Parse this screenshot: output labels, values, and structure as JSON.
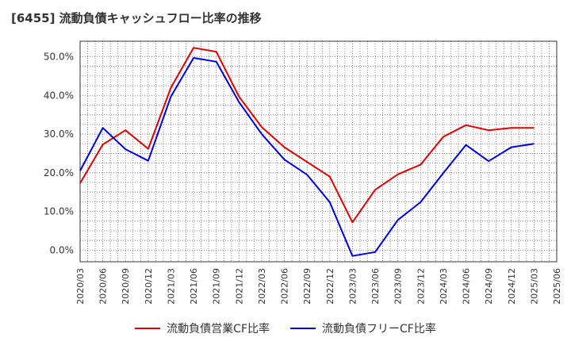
{
  "title": "[6455]  流動負債キャッシュフロー比率の推移",
  "chart_data": {
    "type": "line",
    "title": "[6455]  流動負債キャッシュフロー比率の推移",
    "xlabel": "",
    "ylabel": "",
    "x": [
      "2020/03",
      "2020/06",
      "2020/09",
      "2020/12",
      "2021/03",
      "2021/06",
      "2021/09",
      "2021/12",
      "2022/03",
      "2022/06",
      "2022/09",
      "2022/12",
      "2023/03",
      "2023/06",
      "2023/09",
      "2023/12",
      "2024/03",
      "2024/06",
      "2024/09",
      "2024/12",
      "2025/03"
    ],
    "x_ticks": [
      "2020/03",
      "2020/06",
      "2020/09",
      "2020/12",
      "2021/03",
      "2021/06",
      "2021/09",
      "2021/12",
      "2022/03",
      "2022/06",
      "2022/09",
      "2022/12",
      "2023/03",
      "2023/06",
      "2023/09",
      "2023/12",
      "2024/03",
      "2024/06",
      "2024/09",
      "2024/12",
      "2025/03",
      "2025/06"
    ],
    "y_ticks": [
      "0.0%",
      "10.0%",
      "20.0%",
      "30.0%",
      "40.0%",
      "50.0%"
    ],
    "ylim": [
      -3,
      54
    ],
    "grid": true,
    "legend_position": "bottom",
    "series": [
      {
        "name": "流動負債営業CF比率",
        "color": "#dd0000",
        "values": [
          17.3,
          27.3,
          31.0,
          26.2,
          42.0,
          52.3,
          51.3,
          39.7,
          31.8,
          26.6,
          22.8,
          19.0,
          7.2,
          15.6,
          19.6,
          22.1,
          29.3,
          32.3,
          31.0,
          31.6,
          31.6
        ]
      },
      {
        "name": "流動負債フリーCF比率",
        "color": "#0000dd",
        "values": [
          20.5,
          31.6,
          26.1,
          23.1,
          39.7,
          49.7,
          48.7,
          38.3,
          30.0,
          23.4,
          19.5,
          12.4,
          -1.5,
          -0.5,
          7.8,
          12.4,
          19.9,
          27.2,
          23.0,
          26.6,
          27.5
        ]
      }
    ]
  }
}
